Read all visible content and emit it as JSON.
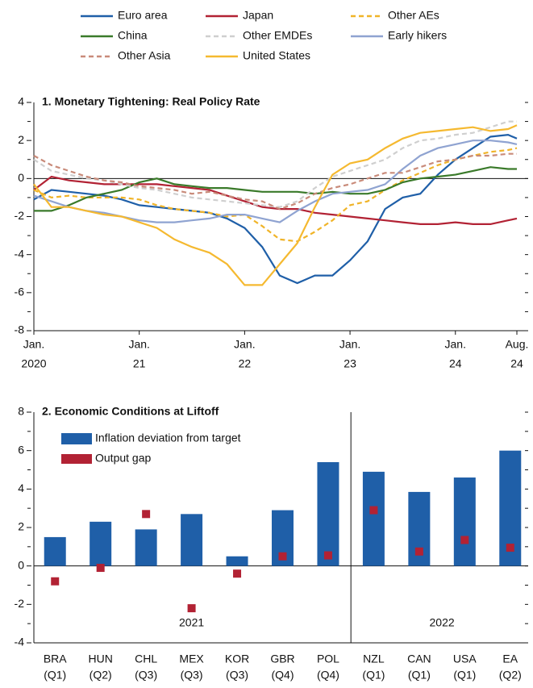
{
  "chart_data": [
    {
      "type": "line",
      "title": "1. Monetary Tightening: Real Policy Rate",
      "x": [
        "2020-01",
        "2020-03",
        "2020-05",
        "2020-07",
        "2020-09",
        "2020-11",
        "2021-01",
        "2021-03",
        "2021-05",
        "2021-07",
        "2021-09",
        "2021-11",
        "2022-01",
        "2022-03",
        "2022-05",
        "2022-07",
        "2022-09",
        "2022-11",
        "2023-01",
        "2023-03",
        "2023-05",
        "2023-07",
        "2023-09",
        "2023-11",
        "2024-01",
        "2024-03",
        "2024-05",
        "2024-07",
        "2024-08"
      ],
      "xlim": [
        "2020-01",
        "2024-08"
      ],
      "xticks": [
        {
          "value": "2020-01",
          "label": [
            "Jan.",
            "2020"
          ]
        },
        {
          "value": "2021-01",
          "label": [
            "Jan.",
            "21"
          ]
        },
        {
          "value": "2022-01",
          "label": [
            "Jan.",
            "22"
          ]
        },
        {
          "value": "2023-01",
          "label": [
            "Jan.",
            "23"
          ]
        },
        {
          "value": "2024-01",
          "label": [
            "Jan.",
            "24"
          ]
        },
        {
          "value": "2024-08",
          "label": [
            "Aug.",
            "24"
          ]
        }
      ],
      "ylim": [
        -8,
        4
      ],
      "yticks": [
        -8,
        -6,
        -4,
        -2,
        0,
        2,
        4
      ],
      "yminor_ticks": [
        -7,
        -5,
        -3,
        -1,
        1,
        3
      ],
      "series": [
        {
          "name": "Euro area",
          "color": "#1f5fa8",
          "dashed": false,
          "values": [
            -1.1,
            -0.6,
            -0.7,
            -0.8,
            -0.9,
            -1.1,
            -1.4,
            -1.5,
            -1.6,
            -1.7,
            -1.8,
            -2.1,
            -2.6,
            -3.6,
            -5.1,
            -5.5,
            -5.1,
            -5.1,
            -4.3,
            -3.3,
            -1.6,
            -1.0,
            -0.8,
            0.2,
            1.0,
            1.6,
            2.2,
            2.3,
            2.1
          ]
        },
        {
          "name": "Japan",
          "color": "#b22234",
          "dashed": false,
          "values": [
            -0.6,
            0.1,
            -0.1,
            -0.2,
            -0.3,
            -0.3,
            -0.3,
            -0.3,
            -0.4,
            -0.5,
            -0.6,
            -0.9,
            -1.2,
            -1.5,
            -1.6,
            -1.6,
            -1.8,
            -1.9,
            -2.0,
            -2.1,
            -2.2,
            -2.3,
            -2.4,
            -2.4,
            -2.3,
            -2.4,
            -2.4,
            -2.2,
            -2.1
          ]
        },
        {
          "name": "Other AEs",
          "color": "#f0b429",
          "dashed": true,
          "values": [
            -0.6,
            -1.0,
            -0.9,
            -1.0,
            -1.0,
            -1.0,
            -1.1,
            -1.4,
            -1.6,
            -1.7,
            -1.8,
            -2.0,
            -1.9,
            -2.5,
            -3.2,
            -3.3,
            -2.8,
            -2.2,
            -1.4,
            -1.2,
            -0.6,
            -0.1,
            0.3,
            0.7,
            1.0,
            1.2,
            1.4,
            1.5,
            1.6
          ]
        },
        {
          "name": "China",
          "color": "#3a7a2a",
          "dashed": false,
          "values": [
            -1.7,
            -1.7,
            -1.4,
            -1.0,
            -0.8,
            -0.6,
            -0.2,
            0.0,
            -0.3,
            -0.4,
            -0.5,
            -0.5,
            -0.6,
            -0.7,
            -0.7,
            -0.7,
            -0.8,
            -0.7,
            -0.8,
            -0.8,
            -0.6,
            -0.2,
            0.0,
            0.1,
            0.2,
            0.4,
            0.6,
            0.5,
            0.5
          ]
        },
        {
          "name": "Other EMDEs",
          "color": "#cfcfcf",
          "dashed": true,
          "values": [
            1.0,
            0.4,
            0.2,
            0.0,
            -0.1,
            -0.3,
            -0.5,
            -0.6,
            -0.8,
            -1.0,
            -1.1,
            -1.2,
            -1.3,
            -1.4,
            -1.5,
            -1.2,
            -0.5,
            0.1,
            0.4,
            0.7,
            1.0,
            1.6,
            2.0,
            2.1,
            2.3,
            2.4,
            2.7,
            3.0,
            3.0
          ]
        },
        {
          "name": "Early hikers",
          "color": "#8fa3d1",
          "dashed": false,
          "values": [
            -0.9,
            -1.2,
            -1.5,
            -1.7,
            -1.8,
            -2.0,
            -2.2,
            -2.3,
            -2.3,
            -2.2,
            -2.1,
            -1.9,
            -1.9,
            -2.1,
            -2.3,
            -1.7,
            -1.2,
            -0.8,
            -0.7,
            -0.6,
            -0.3,
            0.5,
            1.2,
            1.6,
            1.8,
            2.0,
            2.0,
            1.9,
            1.8
          ]
        },
        {
          "name": "Other Asia",
          "color": "#c98b7a",
          "dashed": true,
          "values": [
            1.2,
            0.7,
            0.4,
            0.1,
            -0.1,
            -0.2,
            -0.4,
            -0.5,
            -0.6,
            -0.8,
            -0.7,
            -0.9,
            -1.1,
            -1.2,
            -1.6,
            -1.3,
            -0.8,
            -0.5,
            -0.3,
            0.0,
            0.3,
            0.3,
            0.6,
            0.9,
            1.0,
            1.2,
            1.2,
            1.3,
            1.3
          ]
        },
        {
          "name": "United States",
          "color": "#f5b930",
          "dashed": false,
          "values": [
            -0.3,
            -1.5,
            -1.5,
            -1.7,
            -1.9,
            -2.0,
            -2.3,
            -2.6,
            -3.2,
            -3.6,
            -3.9,
            -4.5,
            -5.6,
            -5.6,
            -4.5,
            -3.4,
            -1.5,
            0.2,
            0.8,
            1.0,
            1.6,
            2.1,
            2.4,
            2.5,
            2.6,
            2.7,
            2.5,
            2.6,
            2.8
          ]
        }
      ]
    },
    {
      "type": "bar",
      "title": "2. Economic Conditions at Liftoff",
      "categories": [
        [
          "BRA",
          "(Q1)"
        ],
        [
          "HUN",
          "(Q2)"
        ],
        [
          "CHL",
          "(Q3)"
        ],
        [
          "MEX",
          "(Q3)"
        ],
        [
          "KOR",
          "(Q3)"
        ],
        [
          "GBR",
          "(Q4)"
        ],
        [
          "POL",
          "(Q4)"
        ],
        [
          "NZL",
          "(Q1)"
        ],
        [
          "CAN",
          "(Q1)"
        ],
        [
          "USA",
          "(Q1)"
        ],
        [
          "EA",
          "(Q2)"
        ]
      ],
      "group_labels": [
        "2021",
        "2022"
      ],
      "ylim": [
        -4,
        8
      ],
      "yticks": [
        -4,
        -2,
        0,
        2,
        4,
        6,
        8
      ],
      "yminor_ticks": [
        -3,
        -1,
        1,
        3,
        5,
        7
      ],
      "series": [
        {
          "name": "Inflation deviation from target",
          "color": "#1f5fa8",
          "values": [
            1.5,
            2.3,
            1.9,
            2.7,
            0.5,
            2.9,
            5.4,
            4.9,
            3.85,
            4.6,
            6.0
          ]
        },
        {
          "name": "Output gap",
          "color": "#b22234",
          "values": [
            -0.8,
            -0.1,
            2.7,
            -2.2,
            -0.4,
            0.5,
            0.55,
            2.9,
            0.75,
            1.35,
            0.95
          ]
        }
      ]
    }
  ]
}
